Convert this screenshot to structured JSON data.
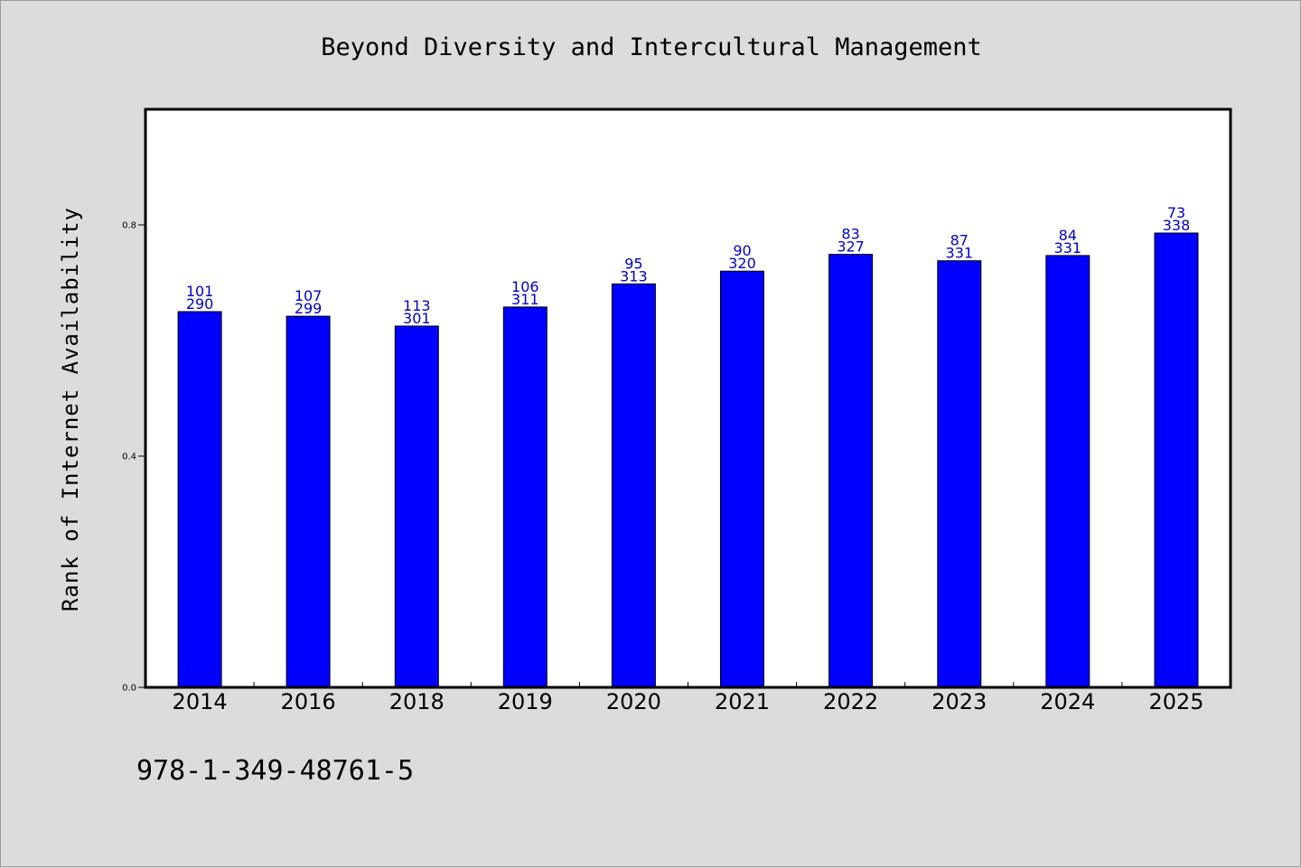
{
  "chart_data": {
    "type": "bar",
    "title": "Beyond Diversity and Intercultural Management",
    "xlabel": "",
    "ylabel": "Rank of Internet Availability",
    "categories": [
      "2014",
      "2016",
      "2018",
      "2019",
      "2020",
      "2021",
      "2022",
      "2023",
      "2024",
      "2025"
    ],
    "values": [
      0.65,
      0.642,
      0.625,
      0.658,
      0.698,
      0.72,
      0.749,
      0.738,
      0.747,
      0.786
    ],
    "annotations_top": [
      "101",
      "107",
      "113",
      "106",
      "95",
      "90",
      "83",
      "87",
      "84",
      "73"
    ],
    "annotations_bottom": [
      "290",
      "299",
      "301",
      "311",
      "313",
      "320",
      "327",
      "331",
      "331",
      "338"
    ],
    "ylim": [
      0,
      1.0
    ],
    "yticks": [
      0.0,
      0.4,
      0.8
    ],
    "ytick_labels": [
      "0.0",
      "0.4",
      "0.8"
    ],
    "bar_color": "#0000ff",
    "label_color": "#0000cc",
    "grid": false,
    "legend": "none"
  },
  "footer": {
    "isbn": "978-1-349-48761-5"
  }
}
